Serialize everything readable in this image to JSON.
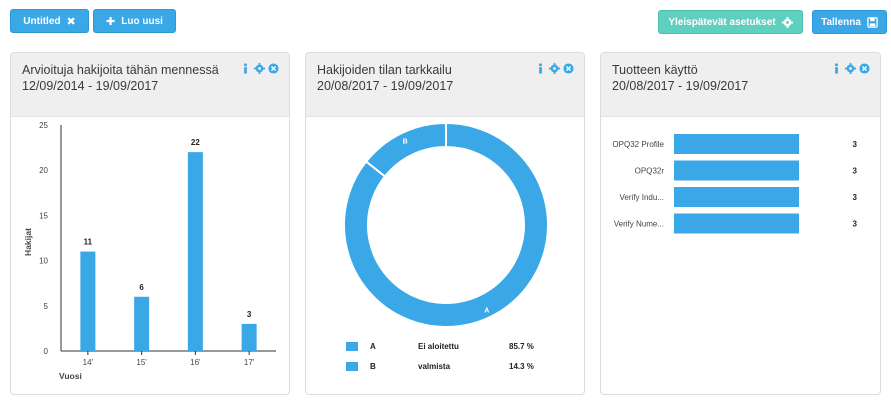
{
  "toolbar": {
    "tab_label": "Untitled",
    "new_label": "Luo uusi",
    "settings_label": "Yleispätevät asetukset",
    "save_label": "Tallenna"
  },
  "colors": {
    "accent": "#3aa7e6",
    "teal": "#5fd0bf",
    "header_bg": "#efefef"
  },
  "panels": [
    {
      "title": "Arvioituja hakijoita tähän mennessä",
      "date": "12/09/2014 - 19/09/2017",
      "icons": [
        "info-icon",
        "gear-icon",
        "close-icon"
      ]
    },
    {
      "title": "Hakijoiden tilan tarkkailu",
      "date": "20/08/2017 - 19/09/2017",
      "icons": [
        "info-icon",
        "gear-icon",
        "close-icon"
      ]
    },
    {
      "title": "Tuotteen käyttö",
      "date": "20/08/2017 - 19/09/2017",
      "icons": [
        "info-icon",
        "gear-icon",
        "close-icon"
      ]
    }
  ],
  "chart_data": [
    {
      "type": "bar",
      "categories": [
        "14'",
        "15'",
        "16'",
        "17'"
      ],
      "values": [
        11,
        6,
        22,
        3
      ],
      "xlabel": "Vuosi",
      "ylabel": "Hakijat",
      "ylim": [
        0,
        25
      ],
      "yticks": [
        0,
        5,
        10,
        15,
        20,
        25
      ]
    },
    {
      "type": "pie",
      "labels": [
        "A",
        "B"
      ],
      "names": [
        "Ei aloitettu",
        "valmista"
      ],
      "values": [
        85.7,
        14.3
      ],
      "value_text": [
        "85.7 %",
        "14.3 %"
      ]
    },
    {
      "type": "bar",
      "orientation": "horizontal",
      "categories": [
        "OPQ32 Profile",
        "OPQ32r",
        "Verify Indu...",
        "Verify Nume..."
      ],
      "values": [
        3,
        3,
        3,
        3
      ]
    }
  ]
}
